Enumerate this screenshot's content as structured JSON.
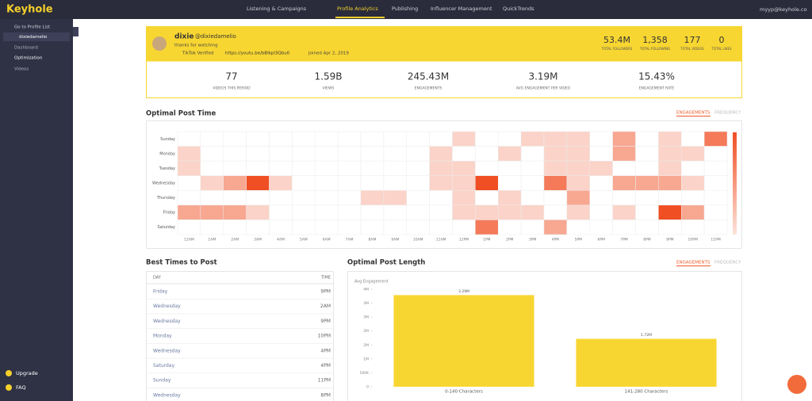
{
  "nav": {
    "logo": "Keyhole",
    "items": [
      "Listening & Campaigns",
      "Profile Analytics",
      "Publishing",
      "Influencer Management",
      "QuickTrends"
    ],
    "user": "myyp@keyhole.co"
  },
  "sidebar": {
    "back": "Go to Profile List",
    "profile": "dixiedamelio",
    "links": [
      "Dashboard",
      "Optimization",
      "Videos"
    ],
    "bottom": [
      "Upgrade",
      "FAQ"
    ]
  },
  "profile": {
    "name": "dixie",
    "handle": "@dixiedamelio",
    "bio": "thanks for watching",
    "verified": "TikTok Verified",
    "link": "https://youtu.be/bBlkpl3Qbu0",
    "joined": "Joined Apr 2, 2019",
    "totals": [
      {
        "value": "53.4M",
        "label": "TOTAL FOLLOWERS"
      },
      {
        "value": "1,358",
        "label": "TOTAL FOLLOWING"
      },
      {
        "value": "177",
        "label": "TOTAL VIDEOS"
      },
      {
        "value": "0",
        "label": "TOTAL LIKES"
      }
    ]
  },
  "period_stats": [
    {
      "value": "77",
      "label": "VIDEOS THIS PERIOD"
    },
    {
      "value": "1.59B",
      "label": "VIEWS"
    },
    {
      "value": "245.43M",
      "label": "ENGAGEMENTS"
    },
    {
      "value": "3.19M",
      "label": "AVG ENGAGEMENT PER VIDEO"
    },
    {
      "value": "15.43%",
      "label": "ENGAGEMENT RATE"
    }
  ],
  "best_times": {
    "title": "Best Times to Post",
    "columns": [
      "DAY",
      "TIME"
    ],
    "rows": [
      [
        "Friday",
        "9PM"
      ],
      [
        "Wednesday",
        "2AM"
      ],
      [
        "Wednesday",
        "9PM"
      ],
      [
        "Monday",
        "10PM"
      ],
      [
        "Wednesday",
        "4PM"
      ],
      [
        "Saturday",
        "4PM"
      ],
      [
        "Sunday",
        "11PM"
      ],
      [
        "Wednesday",
        "8PM"
      ]
    ]
  },
  "chart_data": [
    {
      "type": "heatmap",
      "title": "Optimal Post Time",
      "tabs": [
        "ENGAGEMENTS",
        "FREQUENCY"
      ],
      "color": "#f04e23",
      "x": [
        "12AM",
        "1AM",
        "2AM",
        "3AM",
        "4AM",
        "5AM",
        "6AM",
        "7AM",
        "8AM",
        "9AM",
        "10AM",
        "11AM",
        "12PM",
        "1PM",
        "2PM",
        "3PM",
        "4PM",
        "5PM",
        "6PM",
        "7PM",
        "8PM",
        "9PM",
        "10PM",
        "11PM"
      ],
      "y": [
        "Sunday",
        "Monday",
        "Tuesday",
        "Wednesday",
        "Thursday",
        "Friday",
        "Saturday"
      ],
      "values": [
        [
          0,
          0,
          0,
          0,
          0,
          0,
          0,
          0,
          0,
          0,
          0,
          0,
          1,
          0,
          0,
          1,
          1,
          1,
          0,
          2,
          0,
          1,
          0,
          3
        ],
        [
          1,
          0,
          0,
          0,
          0,
          0,
          0,
          0,
          0,
          0,
          0,
          1,
          0,
          0,
          1,
          0,
          1,
          1,
          0,
          2,
          0,
          1,
          1,
          0
        ],
        [
          1,
          0,
          0,
          0,
          0,
          0,
          0,
          0,
          0,
          0,
          0,
          1,
          1,
          0,
          0,
          0,
          1,
          1,
          1,
          0,
          0,
          1,
          0,
          0
        ],
        [
          0,
          1,
          2,
          4,
          1,
          0,
          0,
          0,
          0,
          0,
          0,
          1,
          1,
          4,
          0,
          0,
          3,
          1,
          0,
          2,
          2,
          2,
          1,
          0
        ],
        [
          0,
          0,
          0,
          0,
          0,
          0,
          0,
          0,
          1,
          1,
          0,
          0,
          1,
          0,
          1,
          0,
          0,
          2,
          0,
          0,
          0,
          0,
          0,
          0
        ],
        [
          2,
          2,
          2,
          1,
          0,
          0,
          0,
          0,
          0,
          0,
          0,
          0,
          1,
          1,
          1,
          1,
          0,
          1,
          0,
          1,
          0,
          4,
          2,
          0
        ],
        [
          0,
          0,
          0,
          0,
          0,
          0,
          0,
          0,
          0,
          0,
          0,
          0,
          0,
          3,
          0,
          0,
          2,
          0,
          0,
          0,
          0,
          0,
          0,
          0
        ]
      ]
    },
    {
      "type": "bar",
      "title": "Optimal Post Length",
      "tabs": [
        "ENGAGEMENTS",
        "FREQUENCY"
      ],
      "y_label": "Avg Engagement",
      "color": "#f8d631",
      "categories": [
        "0-140 Characters",
        "141-280 Characters"
      ],
      "values": [
        3290000,
        1720000
      ],
      "value_labels": [
        "3.29M",
        "1.72M"
      ],
      "ylim": [
        0,
        3500000
      ],
      "yticks": [
        0,
        {
          "value": 500000,
          "label": "500K"
        },
        {
          "value": 1000000,
          "label": "1M"
        },
        {
          "value": 1500000,
          "label": "2M"
        },
        {
          "value": 2000000,
          "label": "2M"
        },
        {
          "value": 2500000,
          "label": "3M"
        },
        {
          "value": 3000000,
          "label": "3M"
        },
        {
          "value": 3500000,
          "label": "4M"
        }
      ]
    }
  ]
}
